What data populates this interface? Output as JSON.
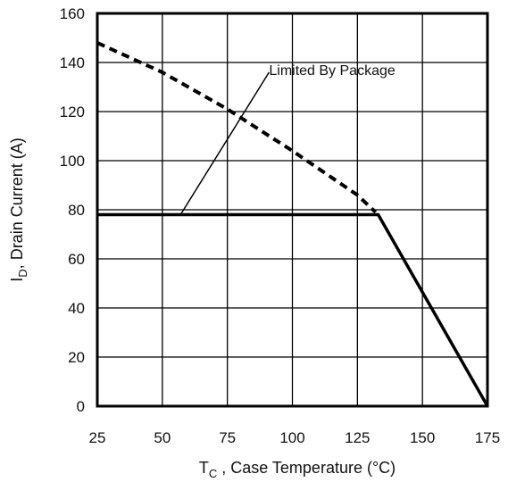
{
  "chart_data": {
    "type": "line",
    "xlabel": {
      "main": "T",
      "sub": "C",
      "rest": " , Case Temperature (°C)"
    },
    "ylabel": {
      "main": "I",
      "sub": "D",
      "rest": ",  Drain Current (A)"
    },
    "xlim": [
      25,
      175
    ],
    "ylim": [
      0,
      160
    ],
    "xticks": [
      25,
      50,
      75,
      100,
      125,
      150,
      175
    ],
    "yticks": [
      0,
      20,
      40,
      60,
      80,
      100,
      120,
      140,
      160
    ],
    "grid": true,
    "series": [
      {
        "style": "dashed",
        "x": [
          25,
          50,
          75,
          100,
          125,
          132
        ],
        "y": [
          148,
          136,
          121,
          104,
          86,
          79
        ]
      },
      {
        "style": "solid",
        "x": [
          25,
          133,
          175
        ],
        "y": [
          78,
          78,
          0
        ]
      }
    ],
    "annotations": [
      {
        "text": "Limited By Package",
        "x": 90,
        "y": 136,
        "point_x": 57,
        "point_y": 78
      }
    ]
  }
}
